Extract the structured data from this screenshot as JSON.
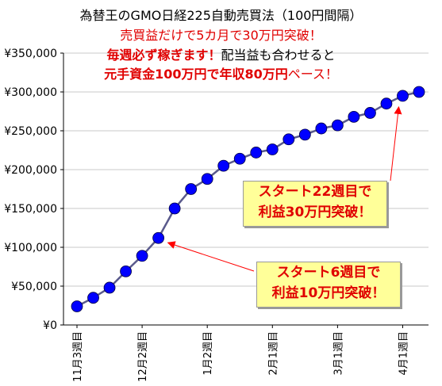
{
  "header": {
    "line1": "為替王のGMO日経225自動売買法（100円間隔）",
    "line2": "売買益だけで5カ月で30万円突破！",
    "line3_bold": "毎週必ず稼ぎます！",
    "line3_plain": "配当益も合わせると",
    "line4_bold": "元手資金100万円で年収80万円",
    "line4_plain": "ペース！"
  },
  "callouts": {
    "upper": {
      "line1": "スタート22週目で",
      "line2": "利益30万円突破！"
    },
    "lower": {
      "line1": "スタート6週目で",
      "line2": "利益10万円突破！"
    }
  },
  "colors": {
    "line": "#5a5a8c",
    "marker": "#0000ff",
    "grid": "#c8c8c8",
    "arrow": "#ff0000",
    "callout_bg": "#ffff99",
    "callout_text": "#e00000"
  },
  "chart_data": {
    "type": "line",
    "x_tick_labels": [
      "11月3週目",
      "12月2週目",
      "1月2週目",
      "2月1週目",
      "3月1週目",
      "4月1週目"
    ],
    "x_tick_indices": [
      0,
      4,
      8,
      12,
      16,
      20
    ],
    "values": [
      24000,
      35000,
      48000,
      69000,
      89000,
      112000,
      150000,
      175000,
      188000,
      205000,
      214000,
      222000,
      226000,
      239000,
      245000,
      253000,
      257000,
      268000,
      273000,
      285000,
      295000,
      300000
    ],
    "ylim": [
      0,
      350000
    ],
    "y_ticks": [
      "¥0",
      "¥50,000",
      "¥100,000",
      "¥150,000",
      "¥200,000",
      "¥250,000",
      "¥300,000",
      "¥350,000"
    ],
    "y_tick_values": [
      0,
      50000,
      100000,
      150000,
      200000,
      250000,
      300000,
      350000
    ],
    "grid": "horizontal",
    "marker": "circle",
    "annotated_points": [
      5,
      20
    ]
  }
}
